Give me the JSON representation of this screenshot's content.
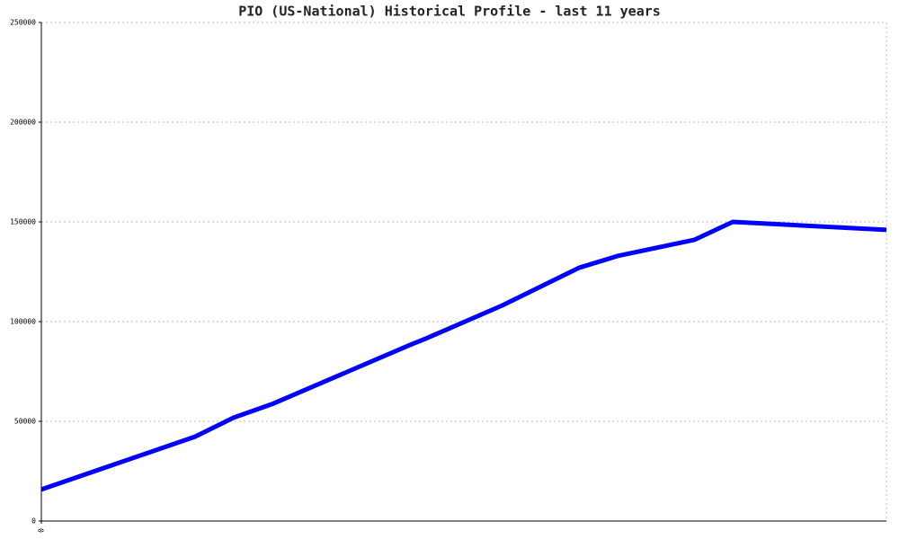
{
  "chart_data": {
    "type": "line",
    "title": "PIO (US-National) Historical Profile - last 11 years",
    "x": [
      0,
      2,
      2.5,
      3,
      4.8,
      5,
      6,
      7,
      7.5,
      8.5,
      9,
      11
    ],
    "series": [
      {
        "color": "#0000ff",
        "values": [
          15800,
          42300,
          51800,
          58600,
          88300,
          91400,
          108100,
          127000,
          132900,
          141000,
          150000,
          146000
        ]
      }
    ],
    "xlim": [
      0,
      11
    ],
    "xticks": [
      0
    ],
    "ylim": [
      0,
      250000
    ],
    "yticks": [
      0,
      50000,
      100000,
      150000,
      200000,
      250000
    ],
    "grid": true
  }
}
